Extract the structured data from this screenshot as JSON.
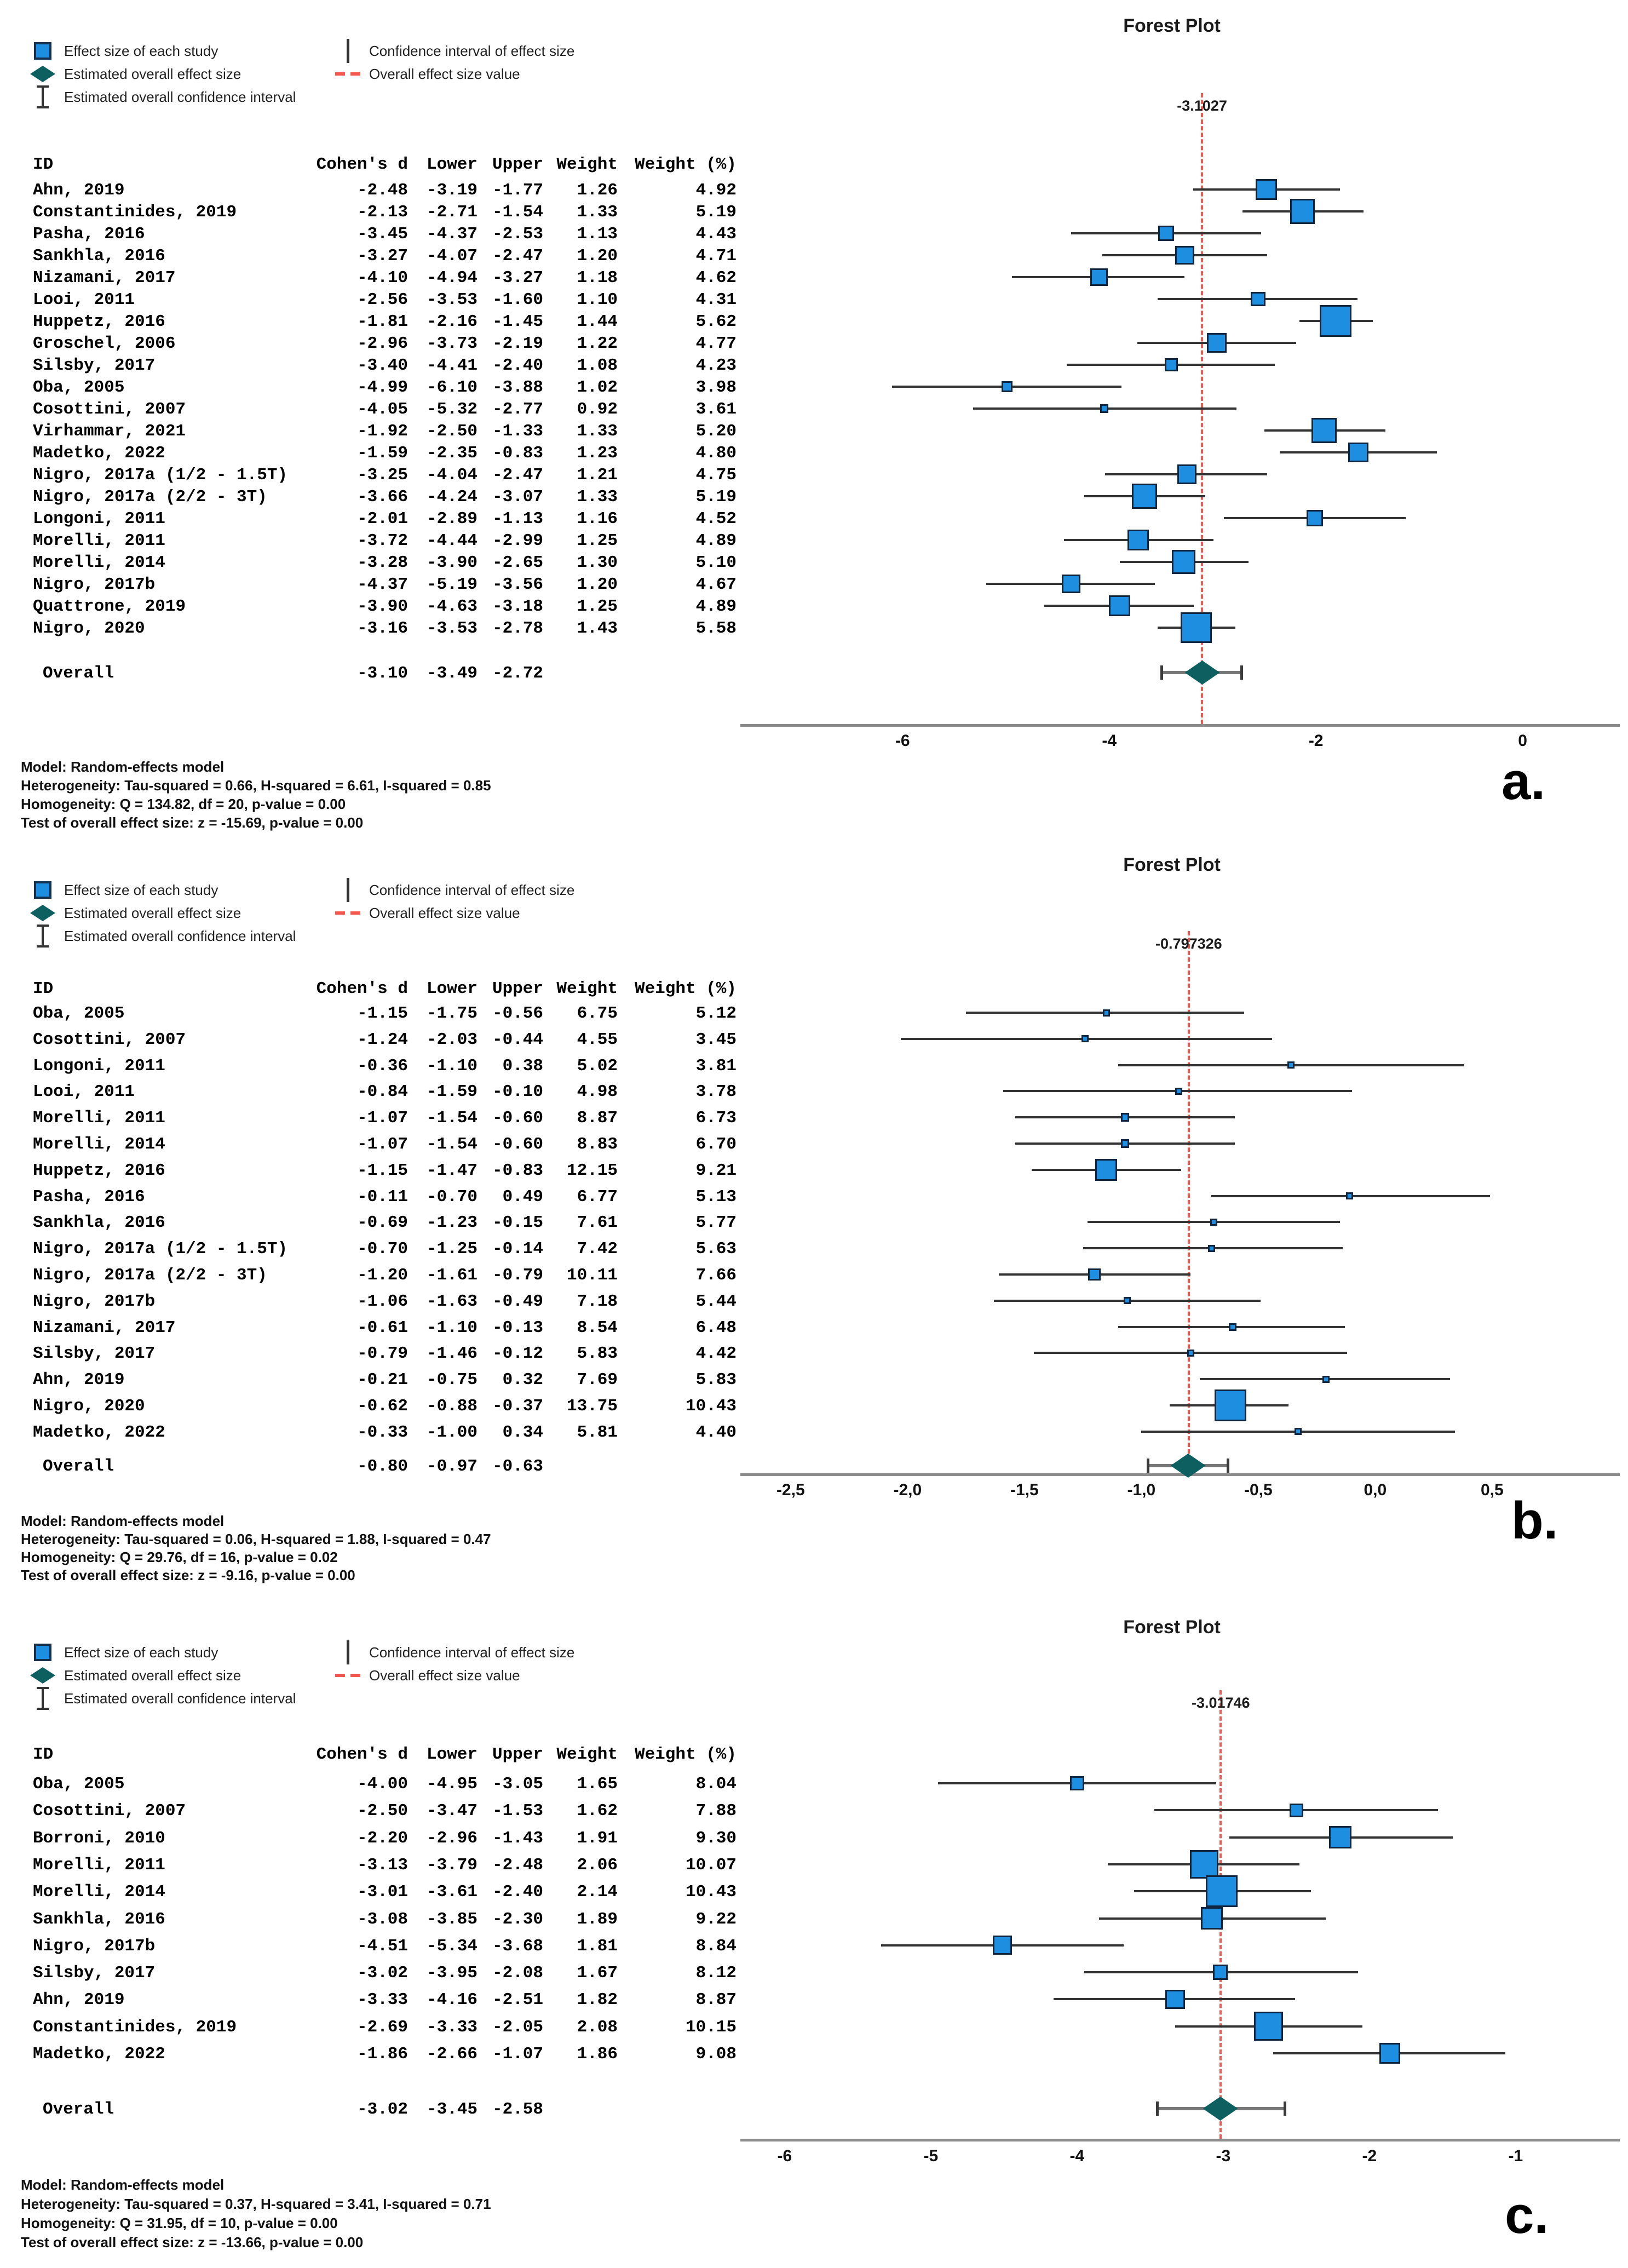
{
  "table": {
    "headers": [
      "ID",
      "Cohen's d",
      "Lower",
      "Upper",
      "Weight",
      "Weight (%)"
    ]
  },
  "legend": {
    "items": [
      {
        "column": 0,
        "icon": "blue-square",
        "label": "Effect size of each study"
      },
      {
        "column": 0,
        "icon": "teal-diamond",
        "label": "Estimated overall effect size"
      },
      {
        "column": 0,
        "icon": "i-beam",
        "label": "Estimated overall confidence interval"
      },
      {
        "column": 1,
        "icon": "vertical-line",
        "label": "Confidence interval of effect size"
      },
      {
        "column": 1,
        "icon": "red-dashes",
        "label": "Overall effect size value"
      }
    ]
  },
  "colors": {
    "square_fill": "#1E8FE0",
    "square_border": "#10253F",
    "diamond": "#0E5F5F",
    "overall_line_red": "#F4574D",
    "ci_line": "#333333",
    "axis_line": "#8C8C8C"
  },
  "chart_data": [
    {
      "type": "scatter",
      "subtype": "forest-plot",
      "panel_label": "a.",
      "title": "Forest Plot",
      "overall_effect_label": "-3.1027",
      "red_line_value": -3.1027,
      "xlim": [
        -7.57,
        0.94
      ],
      "x_ticks": {
        "values": [
          -6,
          -4,
          -2,
          0
        ],
        "labels": [
          "-6",
          "-4",
          "-2",
          "0"
        ]
      },
      "studies": [
        {
          "id": "Ahn, 2019",
          "d": "-2.48",
          "lower": "-3.19",
          "upper": "-1.77",
          "weight": "1.26",
          "weight_pct": "4.92"
        },
        {
          "id": "Constantinides, 2019",
          "d": "-2.13",
          "lower": "-2.71",
          "upper": "-1.54",
          "weight": "1.33",
          "weight_pct": "5.19"
        },
        {
          "id": "Pasha, 2016",
          "d": "-3.45",
          "lower": "-4.37",
          "upper": "-2.53",
          "weight": "1.13",
          "weight_pct": "4.43"
        },
        {
          "id": "Sankhla, 2016",
          "d": "-3.27",
          "lower": "-4.07",
          "upper": "-2.47",
          "weight": "1.20",
          "weight_pct": "4.71"
        },
        {
          "id": "Nizamani, 2017",
          "d": "-4.10",
          "lower": "-4.94",
          "upper": "-3.27",
          "weight": "1.18",
          "weight_pct": "4.62"
        },
        {
          "id": "Looi, 2011",
          "d": "-2.56",
          "lower": "-3.53",
          "upper": "-1.60",
          "weight": "1.10",
          "weight_pct": "4.31"
        },
        {
          "id": "Huppetz, 2016",
          "d": "-1.81",
          "lower": "-2.16",
          "upper": "-1.45",
          "weight": "1.44",
          "weight_pct": "5.62"
        },
        {
          "id": "Groschel, 2006",
          "d": "-2.96",
          "lower": "-3.73",
          "upper": "-2.19",
          "weight": "1.22",
          "weight_pct": "4.77"
        },
        {
          "id": "Silsby, 2017",
          "d": "-3.40",
          "lower": "-4.41",
          "upper": "-2.40",
          "weight": "1.08",
          "weight_pct": "4.23"
        },
        {
          "id": "Oba, 2005",
          "d": "-4.99",
          "lower": "-6.10",
          "upper": "-3.88",
          "weight": "1.02",
          "weight_pct": "3.98"
        },
        {
          "id": "Cosottini, 2007",
          "d": "-4.05",
          "lower": "-5.32",
          "upper": "-2.77",
          "weight": "0.92",
          "weight_pct": "3.61"
        },
        {
          "id": "Virhammar, 2021",
          "d": "-1.92",
          "lower": "-2.50",
          "upper": "-1.33",
          "weight": "1.33",
          "weight_pct": "5.20"
        },
        {
          "id": "Madetko, 2022",
          "d": "-1.59",
          "lower": "-2.35",
          "upper": "-0.83",
          "weight": "1.23",
          "weight_pct": "4.80"
        },
        {
          "id": "Nigro, 2017a (1/2 - 1.5T)",
          "d": "-3.25",
          "lower": "-4.04",
          "upper": "-2.47",
          "weight": "1.21",
          "weight_pct": "4.75"
        },
        {
          "id": "Nigro, 2017a (2/2 - 3T)",
          "d": "-3.66",
          "lower": "-4.24",
          "upper": "-3.07",
          "weight": "1.33",
          "weight_pct": "5.19"
        },
        {
          "id": "Longoni, 2011",
          "d": "-2.01",
          "lower": "-2.89",
          "upper": "-1.13",
          "weight": "1.16",
          "weight_pct": "4.52"
        },
        {
          "id": "Morelli, 2011",
          "d": "-3.72",
          "lower": "-4.44",
          "upper": "-2.99",
          "weight": "1.25",
          "weight_pct": "4.89"
        },
        {
          "id": "Morelli, 2014",
          "d": "-3.28",
          "lower": "-3.90",
          "upper": "-2.65",
          "weight": "1.30",
          "weight_pct": "5.10"
        },
        {
          "id": "Nigro, 2017b",
          "d": "-4.37",
          "lower": "-5.19",
          "upper": "-3.56",
          "weight": "1.20",
          "weight_pct": "4.67"
        },
        {
          "id": "Quattrone, 2019",
          "d": "-3.90",
          "lower": "-4.63",
          "upper": "-3.18",
          "weight": "1.25",
          "weight_pct": "4.89"
        },
        {
          "id": "Nigro, 2020",
          "d": "-3.16",
          "lower": "-3.53",
          "upper": "-2.78",
          "weight": "1.43",
          "weight_pct": "5.58"
        }
      ],
      "overall": {
        "id": "Overall",
        "d": "-3.10",
        "lower": "-3.49",
        "upper": "-2.72"
      },
      "model_stats": [
        "Model: Random-effects model",
        "Heterogeneity: Tau-squared = 0.66, H-squared = 6.61, I-squared = 0.85",
        "Homogeneity: Q = 134.82, df = 20, p-value = 0.00",
        "Test of overall effect size: z = -15.69, p-value = 0.00"
      ]
    },
    {
      "type": "scatter",
      "subtype": "forest-plot",
      "panel_label": "b.",
      "title": "Forest Plot",
      "overall_effect_label": "-0.797326",
      "red_line_value": -0.797326,
      "xlim": [
        -2.715,
        1.046
      ],
      "x_ticks": {
        "values": [
          -2.5,
          -2.0,
          -1.5,
          -1.0,
          -0.5,
          0.0,
          0.5
        ],
        "labels": [
          "-2,5",
          "-2,0",
          "-1,5",
          "-1,0",
          "-0,5",
          "0,0",
          "0,5"
        ]
      },
      "studies": [
        {
          "id": "Oba, 2005",
          "d": "-1.15",
          "lower": "-1.75",
          "upper": "-0.56",
          "weight": "6.75",
          "weight_pct": "5.12"
        },
        {
          "id": "Cosottini, 2007",
          "d": "-1.24",
          "lower": "-2.03",
          "upper": "-0.44",
          "weight": "4.55",
          "weight_pct": "3.45"
        },
        {
          "id": "Longoni, 2011",
          "d": "-0.36",
          "lower": "-1.10",
          "upper": "0.38",
          "weight": "5.02",
          "weight_pct": "3.81"
        },
        {
          "id": "Looi, 2011",
          "d": "-0.84",
          "lower": "-1.59",
          "upper": "-0.10",
          "weight": "4.98",
          "weight_pct": "3.78"
        },
        {
          "id": "Morelli, 2011",
          "d": "-1.07",
          "lower": "-1.54",
          "upper": "-0.60",
          "weight": "8.87",
          "weight_pct": "6.73"
        },
        {
          "id": "Morelli, 2014",
          "d": "-1.07",
          "lower": "-1.54",
          "upper": "-0.60",
          "weight": "8.83",
          "weight_pct": "6.70"
        },
        {
          "id": "Huppetz, 2016",
          "d": "-1.15",
          "lower": "-1.47",
          "upper": "-0.83",
          "weight": "12.15",
          "weight_pct": "9.21"
        },
        {
          "id": "Pasha, 2016",
          "d": "-0.11",
          "lower": "-0.70",
          "upper": "0.49",
          "weight": "6.77",
          "weight_pct": "5.13"
        },
        {
          "id": "Sankhla, 2016",
          "d": "-0.69",
          "lower": "-1.23",
          "upper": "-0.15",
          "weight": "7.61",
          "weight_pct": "5.77"
        },
        {
          "id": "Nigro, 2017a (1/2 - 1.5T)",
          "d": "-0.70",
          "lower": "-1.25",
          "upper": "-0.14",
          "weight": "7.42",
          "weight_pct": "5.63"
        },
        {
          "id": "Nigro, 2017a (2/2 - 3T)",
          "d": "-1.20",
          "lower": "-1.61",
          "upper": "-0.79",
          "weight": "10.11",
          "weight_pct": "7.66"
        },
        {
          "id": "Nigro, 2017b",
          "d": "-1.06",
          "lower": "-1.63",
          "upper": "-0.49",
          "weight": "7.18",
          "weight_pct": "5.44"
        },
        {
          "id": "Nizamani, 2017",
          "d": "-0.61",
          "lower": "-1.10",
          "upper": "-0.13",
          "weight": "8.54",
          "weight_pct": "6.48"
        },
        {
          "id": "Silsby, 2017",
          "d": "-0.79",
          "lower": "-1.46",
          "upper": "-0.12",
          "weight": "5.83",
          "weight_pct": "4.42"
        },
        {
          "id": "Ahn, 2019",
          "d": "-0.21",
          "lower": "-0.75",
          "upper": "0.32",
          "weight": "7.69",
          "weight_pct": "5.83"
        },
        {
          "id": "Nigro, 2020",
          "d": "-0.62",
          "lower": "-0.88",
          "upper": "-0.37",
          "weight": "13.75",
          "weight_pct": "10.43"
        },
        {
          "id": "Madetko, 2022",
          "d": "-0.33",
          "lower": "-1.00",
          "upper": "0.34",
          "weight": "5.81",
          "weight_pct": "4.40"
        }
      ],
      "overall": {
        "id": "Overall",
        "d": "-0.80",
        "lower": "-0.97",
        "upper": "-0.63"
      },
      "model_stats": [
        "Model: Random-effects model",
        "Heterogeneity: Tau-squared = 0.06, H-squared = 1.88, I-squared = 0.47",
        "Homogeneity: Q = 29.76, df = 16, p-value = 0.02",
        "Test of overall effect size: z = -9.16, p-value = 0.00"
      ]
    },
    {
      "type": "scatter",
      "subtype": "forest-plot",
      "panel_label": "c.",
      "title": "Forest Plot",
      "overall_effect_label": "-3.01746",
      "red_line_value": -3.01746,
      "xlim": [
        -6.303,
        -0.288
      ],
      "x_ticks": {
        "values": [
          -6,
          -5,
          -4,
          -3,
          -2,
          -1
        ],
        "labels": [
          "-6",
          "-5",
          "-4",
          "-3",
          "-2",
          "-1"
        ]
      },
      "studies": [
        {
          "id": "Oba, 2005",
          "d": "-4.00",
          "lower": "-4.95",
          "upper": "-3.05",
          "weight": "1.65",
          "weight_pct": "8.04"
        },
        {
          "id": "Cosottini, 2007",
          "d": "-2.50",
          "lower": "-3.47",
          "upper": "-1.53",
          "weight": "1.62",
          "weight_pct": "7.88"
        },
        {
          "id": "Borroni, 2010",
          "d": "-2.20",
          "lower": "-2.96",
          "upper": "-1.43",
          "weight": "1.91",
          "weight_pct": "9.30"
        },
        {
          "id": "Morelli, 2011",
          "d": "-3.13",
          "lower": "-3.79",
          "upper": "-2.48",
          "weight": "2.06",
          "weight_pct": "10.07"
        },
        {
          "id": "Morelli, 2014",
          "d": "-3.01",
          "lower": "-3.61",
          "upper": "-2.40",
          "weight": "2.14",
          "weight_pct": "10.43"
        },
        {
          "id": "Sankhla, 2016",
          "d": "-3.08",
          "lower": "-3.85",
          "upper": "-2.30",
          "weight": "1.89",
          "weight_pct": "9.22"
        },
        {
          "id": "Nigro, 2017b",
          "d": "-4.51",
          "lower": "-5.34",
          "upper": "-3.68",
          "weight": "1.81",
          "weight_pct": "8.84"
        },
        {
          "id": "Silsby, 2017",
          "d": "-3.02",
          "lower": "-3.95",
          "upper": "-2.08",
          "weight": "1.67",
          "weight_pct": "8.12"
        },
        {
          "id": "Ahn, 2019",
          "d": "-3.33",
          "lower": "-4.16",
          "upper": "-2.51",
          "weight": "1.82",
          "weight_pct": "8.87"
        },
        {
          "id": "Constantinides, 2019",
          "d": "-2.69",
          "lower": "-3.33",
          "upper": "-2.05",
          "weight": "2.08",
          "weight_pct": "10.15"
        },
        {
          "id": "Madetko, 2022",
          "d": "-1.86",
          "lower": "-2.66",
          "upper": "-1.07",
          "weight": "1.86",
          "weight_pct": "9.08"
        }
      ],
      "overall": {
        "id": "Overall",
        "d": "-3.02",
        "lower": "-3.45",
        "upper": "-2.58"
      },
      "model_stats": [
        "Model: Random-effects model",
        "Heterogeneity: Tau-squared = 0.37, H-squared = 3.41, I-squared = 0.71",
        "Homogeneity: Q = 31.95, df = 10, p-value = 0.00",
        "Test of overall effect size: z = -13.66, p-value = 0.00"
      ]
    }
  ]
}
